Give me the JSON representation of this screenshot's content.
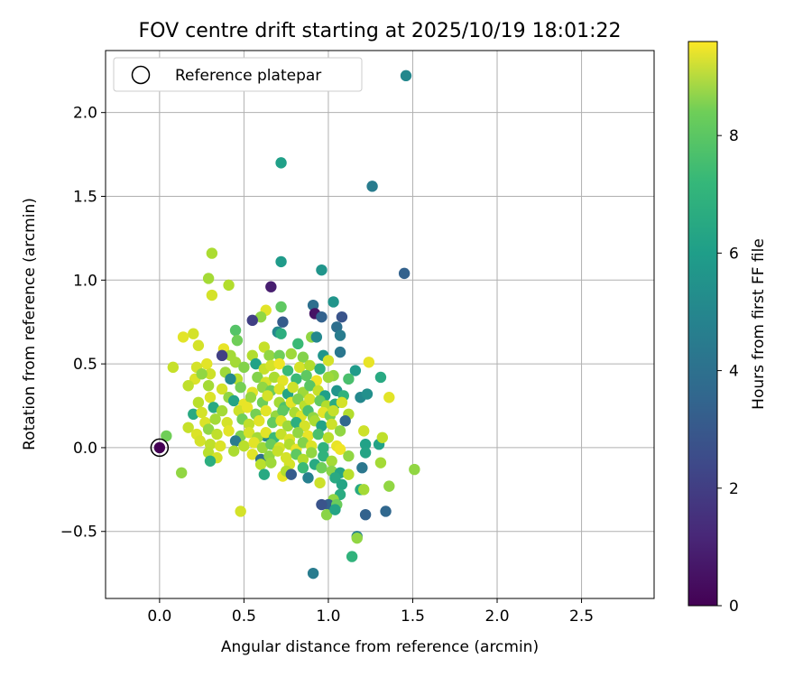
{
  "chart_data": {
    "type": "scatter",
    "title": "FOV centre drift starting at 2025/10/19 18:01:22",
    "xlabel": "Angular distance from reference (arcmin)",
    "ylabel": "Rotation from reference (arcmin)",
    "xlim": [
      -0.32,
      2.93
    ],
    "ylim": [
      -0.9,
      2.37
    ],
    "xticks": [
      0.0,
      0.5,
      1.0,
      1.5,
      2.0,
      2.5
    ],
    "xtick_labels": [
      "0.0",
      "0.5",
      "1.0",
      "1.5",
      "2.0",
      "2.5"
    ],
    "yticks": [
      -0.5,
      0.0,
      0.5,
      1.0,
      1.5,
      2.0
    ],
    "ytick_labels": [
      "−0.5",
      "0.0",
      "0.5",
      "1.0",
      "1.5",
      "2.0"
    ],
    "grid": true,
    "legend": {
      "location": "top-left",
      "entries": [
        "Reference platepar"
      ]
    },
    "reference_point": {
      "x": 0.0,
      "y": 0.0,
      "label": "Reference platepar"
    },
    "colorbar": {
      "label": "Hours from first FF file",
      "colormap": "viridis",
      "range": [
        0,
        9.6
      ],
      "ticks": [
        0,
        2,
        4,
        6,
        8
      ],
      "tick_labels": [
        "0",
        "2",
        "4",
        "6",
        "8"
      ]
    },
    "points_columns": [
      "x",
      "y",
      "hours"
    ],
    "points": [
      [
        1.46,
        2.22,
        4.5
      ],
      [
        0.72,
        1.7,
        5.4
      ],
      [
        1.26,
        1.56,
        4.0
      ],
      [
        1.45,
        1.04,
        3.0
      ],
      [
        0.72,
        1.11,
        5.2
      ],
      [
        0.96,
        1.06,
        5.0
      ],
      [
        0.66,
        0.96,
        0.8
      ],
      [
        0.31,
        1.16,
        8.4
      ],
      [
        0.29,
        1.01,
        8.3
      ],
      [
        0.41,
        0.97,
        8.5
      ],
      [
        0.31,
        0.91,
        9.0
      ],
      [
        0.91,
        0.85,
        3.5
      ],
      [
        0.92,
        0.8,
        0.5
      ],
      [
        1.03,
        0.87,
        5.0
      ],
      [
        0.72,
        0.84,
        7.2
      ],
      [
        0.63,
        0.82,
        9.2
      ],
      [
        0.6,
        0.78,
        8.0
      ],
      [
        0.55,
        0.76,
        1.8
      ],
      [
        0.96,
        0.78,
        3.0
      ],
      [
        1.08,
        0.78,
        2.5
      ],
      [
        0.73,
        0.75,
        2.8
      ],
      [
        1.05,
        0.72,
        3.5
      ],
      [
        0.45,
        0.7,
        7.0
      ],
      [
        0.7,
        0.69,
        4.5
      ],
      [
        0.72,
        0.68,
        6.0
      ],
      [
        0.2,
        0.68,
        9.0
      ],
      [
        0.14,
        0.66,
        9.2
      ],
      [
        0.9,
        0.66,
        8.0
      ],
      [
        0.46,
        0.64,
        7.5
      ],
      [
        1.07,
        0.67,
        4.0
      ],
      [
        0.93,
        0.66,
        4.5
      ],
      [
        0.23,
        0.61,
        9.0
      ],
      [
        0.38,
        0.59,
        9.3
      ],
      [
        0.62,
        0.6,
        8.8
      ],
      [
        0.82,
        0.62,
        6.5
      ],
      [
        0.42,
        0.55,
        8.3
      ],
      [
        0.37,
        0.55,
        1.8
      ],
      [
        0.55,
        0.55,
        8.5
      ],
      [
        0.65,
        0.55,
        8.0
      ],
      [
        0.71,
        0.55,
        7.5
      ],
      [
        0.78,
        0.56,
        8.2
      ],
      [
        0.85,
        0.54,
        7.8
      ],
      [
        0.97,
        0.55,
        5.0
      ],
      [
        1.07,
        0.57,
        3.8
      ],
      [
        0.28,
        0.5,
        9.2
      ],
      [
        0.45,
        0.51,
        8.3
      ],
      [
        0.5,
        0.48,
        7.8
      ],
      [
        0.57,
        0.5,
        5.5
      ],
      [
        0.62,
        0.47,
        8.8
      ],
      [
        0.66,
        0.49,
        9.0
      ],
      [
        0.71,
        0.5,
        9.4
      ],
      [
        0.76,
        0.46,
        6.5
      ],
      [
        0.83,
        0.48,
        9.0
      ],
      [
        0.89,
        0.49,
        8.5
      ],
      [
        0.95,
        0.47,
        6.0
      ],
      [
        1.0,
        0.52,
        9.0
      ],
      [
        1.03,
        0.43,
        8.0
      ],
      [
        1.16,
        0.46,
        5.2
      ],
      [
        1.24,
        0.51,
        9.3
      ],
      [
        0.08,
        0.48,
        8.8
      ],
      [
        0.22,
        0.48,
        9.0
      ],
      [
        0.21,
        0.41,
        9.1
      ],
      [
        0.3,
        0.44,
        8.9
      ],
      [
        0.39,
        0.45,
        8.2
      ],
      [
        0.46,
        0.41,
        8.6
      ],
      [
        0.58,
        0.42,
        7.8
      ],
      [
        0.63,
        0.39,
        9.0
      ],
      [
        0.68,
        0.42,
        8.4
      ],
      [
        0.73,
        0.4,
        9.2
      ],
      [
        0.81,
        0.41,
        6.5
      ],
      [
        0.87,
        0.43,
        7.2
      ],
      [
        0.93,
        0.4,
        9.4
      ],
      [
        1.0,
        0.42,
        8.2
      ],
      [
        1.12,
        0.41,
        6.8
      ],
      [
        1.31,
        0.42,
        5.8
      ],
      [
        0.25,
        0.44,
        8.0
      ],
      [
        0.42,
        0.41,
        4.5
      ],
      [
        0.17,
        0.37,
        8.7
      ],
      [
        0.29,
        0.37,
        8.3
      ],
      [
        0.37,
        0.35,
        9.0
      ],
      [
        0.48,
        0.36,
        7.6
      ],
      [
        0.55,
        0.33,
        9.2
      ],
      [
        0.61,
        0.36,
        8.0
      ],
      [
        0.66,
        0.34,
        7.4
      ],
      [
        0.71,
        0.35,
        9.1
      ],
      [
        0.76,
        0.32,
        5.6
      ],
      [
        0.79,
        0.36,
        8.9
      ],
      [
        0.85,
        0.33,
        8.2
      ],
      [
        0.89,
        0.37,
        7.1
      ],
      [
        0.94,
        0.34,
        8.8
      ],
      [
        0.98,
        0.31,
        5.4
      ],
      [
        1.05,
        0.34,
        5.0
      ],
      [
        1.09,
        0.31,
        6.2
      ],
      [
        1.19,
        0.3,
        4.5
      ],
      [
        1.23,
        0.32,
        4.8
      ],
      [
        1.36,
        0.3,
        9.2
      ],
      [
        0.23,
        0.27,
        8.6
      ],
      [
        0.3,
        0.3,
        9.1
      ],
      [
        0.41,
        0.3,
        8.0
      ],
      [
        0.44,
        0.28,
        5.6
      ],
      [
        0.5,
        0.26,
        9.3
      ],
      [
        0.54,
        0.3,
        8.1
      ],
      [
        0.61,
        0.27,
        7.5
      ],
      [
        0.64,
        0.31,
        9.0
      ],
      [
        0.71,
        0.27,
        8.3
      ],
      [
        0.74,
        0.24,
        6.9
      ],
      [
        0.78,
        0.27,
        9.2
      ],
      [
        0.82,
        0.29,
        7.7
      ],
      [
        0.86,
        0.25,
        8.6
      ],
      [
        0.89,
        0.29,
        9.0
      ],
      [
        0.95,
        0.28,
        7.3
      ],
      [
        0.99,
        0.25,
        8.5
      ],
      [
        1.04,
        0.26,
        5.9
      ],
      [
        1.08,
        0.27,
        9.0
      ],
      [
        0.32,
        0.24,
        5.8
      ],
      [
        0.2,
        0.2,
        5.8
      ],
      [
        0.25,
        0.21,
        9.0
      ],
      [
        0.37,
        0.22,
        8.3
      ],
      [
        0.47,
        0.22,
        8.9
      ],
      [
        0.52,
        0.24,
        9.3
      ],
      [
        0.57,
        0.2,
        7.6
      ],
      [
        0.63,
        0.22,
        9.2
      ],
      [
        0.69,
        0.19,
        8.1
      ],
      [
        0.73,
        0.22,
        7.2
      ],
      [
        0.8,
        0.21,
        8.4
      ],
      [
        0.84,
        0.19,
        9.1
      ],
      [
        0.88,
        0.22,
        6.8
      ],
      [
        0.91,
        0.18,
        8.0
      ],
      [
        0.97,
        0.21,
        9.2
      ],
      [
        1.01,
        0.19,
        7.6
      ],
      [
        1.03,
        0.22,
        8.8
      ],
      [
        1.12,
        0.2,
        8.5
      ],
      [
        1.1,
        0.16,
        3.2
      ],
      [
        0.27,
        0.15,
        9.1
      ],
      [
        0.33,
        0.17,
        8.3
      ],
      [
        0.4,
        0.15,
        9.0
      ],
      [
        0.49,
        0.17,
        7.5
      ],
      [
        0.53,
        0.14,
        8.7
      ],
      [
        0.59,
        0.16,
        9.2
      ],
      [
        0.67,
        0.15,
        7.3
      ],
      [
        0.72,
        0.16,
        9.1
      ],
      [
        0.76,
        0.13,
        8.2
      ],
      [
        0.81,
        0.15,
        6.0
      ],
      [
        0.86,
        0.13,
        9.0
      ],
      [
        0.92,
        0.16,
        8.4
      ],
      [
        0.96,
        0.13,
        5.5
      ],
      [
        1.02,
        0.14,
        8.9
      ],
      [
        0.63,
        0.07,
        4.5
      ],
      [
        0.17,
        0.12,
        8.8
      ],
      [
        0.22,
        0.08,
        9.1
      ],
      [
        0.29,
        0.11,
        8.0
      ],
      [
        0.34,
        0.08,
        8.7
      ],
      [
        0.41,
        0.1,
        9.2
      ],
      [
        0.48,
        0.07,
        7.7
      ],
      [
        0.53,
        0.09,
        9.0
      ],
      [
        0.58,
        0.06,
        8.3
      ],
      [
        0.63,
        0.09,
        9.2
      ],
      [
        0.68,
        0.06,
        6.5
      ],
      [
        0.72,
        0.08,
        8.8
      ],
      [
        0.77,
        0.05,
        9.1
      ],
      [
        0.82,
        0.09,
        8.0
      ],
      [
        0.88,
        0.07,
        9.3
      ],
      [
        0.94,
        0.08,
        6.8
      ],
      [
        1.0,
        0.06,
        8.6
      ],
      [
        1.07,
        0.1,
        8.0
      ],
      [
        1.21,
        0.1,
        8.9
      ],
      [
        1.3,
        0.02,
        5.5
      ],
      [
        0.04,
        0.07,
        7.5
      ],
      [
        0.24,
        0.04,
        9.0
      ],
      [
        0.3,
        0.02,
        8.7
      ],
      [
        0.36,
        0.01,
        9.1
      ],
      [
        0.45,
        0.04,
        4.0
      ],
      [
        0.5,
        0.01,
        8.6
      ],
      [
        0.56,
        0.03,
        9.2
      ],
      [
        0.61,
        0.0,
        8.2
      ],
      [
        0.66,
        0.02,
        7.4
      ],
      [
        0.71,
        0.0,
        9.0
      ],
      [
        0.77,
        0.02,
        8.5
      ],
      [
        0.81,
        -0.01,
        9.3
      ],
      [
        0.85,
        0.03,
        7.8
      ],
      [
        0.9,
        0.01,
        9.1
      ],
      [
        0.97,
        0.0,
        6.2
      ],
      [
        1.05,
        0.01,
        9.3
      ],
      [
        1.22,
        0.02,
        5.5
      ],
      [
        1.32,
        0.06,
        8.7
      ],
      [
        0.29,
        -0.03,
        8.6
      ],
      [
        0.34,
        -0.06,
        9.0
      ],
      [
        0.44,
        -0.02,
        8.4
      ],
      [
        0.55,
        -0.04,
        9.2
      ],
      [
        0.6,
        -0.07,
        3.5
      ],
      [
        0.65,
        -0.05,
        8.0
      ],
      [
        0.7,
        -0.02,
        8.8
      ],
      [
        0.75,
        -0.06,
        9.0
      ],
      [
        0.81,
        -0.04,
        7.2
      ],
      [
        0.85,
        -0.07,
        8.5
      ],
      [
        0.9,
        -0.03,
        8.0
      ],
      [
        0.97,
        -0.05,
        6.2
      ],
      [
        1.02,
        -0.08,
        8.3
      ],
      [
        1.07,
        -0.01,
        9.4
      ],
      [
        1.12,
        -0.05,
        8.0
      ],
      [
        1.22,
        -0.03,
        5.6
      ],
      [
        0.3,
        -0.08,
        6.0
      ],
      [
        0.6,
        -0.1,
        8.6
      ],
      [
        0.66,
        -0.09,
        8.2
      ],
      [
        0.77,
        -0.1,
        9.0
      ],
      [
        0.85,
        -0.12,
        6.5
      ],
      [
        0.92,
        -0.1,
        5.8
      ],
      [
        0.96,
        -0.12,
        7.5
      ],
      [
        1.02,
        -0.14,
        7.9
      ],
      [
        1.07,
        -0.15,
        5.6
      ],
      [
        1.12,
        -0.16,
        8.6
      ],
      [
        1.2,
        -0.12,
        3.8
      ],
      [
        1.31,
        -0.09,
        8.3
      ],
      [
        1.51,
        -0.13,
        8.0
      ],
      [
        0.13,
        -0.15,
        8.0
      ],
      [
        0.62,
        -0.16,
        5.8
      ],
      [
        0.73,
        -0.17,
        9.3
      ],
      [
        0.75,
        -0.14,
        8.5
      ],
      [
        0.78,
        -0.16,
        2.8
      ],
      [
        0.88,
        -0.18,
        4.2
      ],
      [
        1.04,
        -0.18,
        5.8
      ],
      [
        1.08,
        -0.22,
        5.6
      ],
      [
        1.19,
        -0.25,
        5.8
      ],
      [
        1.21,
        -0.25,
        8.3
      ],
      [
        1.36,
        -0.23,
        8.0
      ],
      [
        0.95,
        -0.21,
        8.9
      ],
      [
        1.07,
        -0.28,
        5.9
      ],
      [
        1.03,
        -0.31,
        8.0
      ],
      [
        1.0,
        -0.34,
        3.0
      ],
      [
        0.96,
        -0.34,
        2.5
      ],
      [
        1.05,
        -0.34,
        7.4
      ],
      [
        0.99,
        -0.4,
        7.9
      ],
      [
        1.04,
        -0.37,
        5.6
      ],
      [
        1.22,
        -0.4,
        3.0
      ],
      [
        1.34,
        -0.38,
        3.2
      ],
      [
        0.48,
        -0.38,
        9.0
      ],
      [
        1.17,
        -0.53,
        4.2
      ],
      [
        1.17,
        -0.54,
        8.0
      ],
      [
        1.14,
        -0.65,
        6.2
      ],
      [
        0.91,
        -0.75,
        4.0
      ],
      [
        0.0,
        0.0,
        0.0
      ]
    ]
  }
}
